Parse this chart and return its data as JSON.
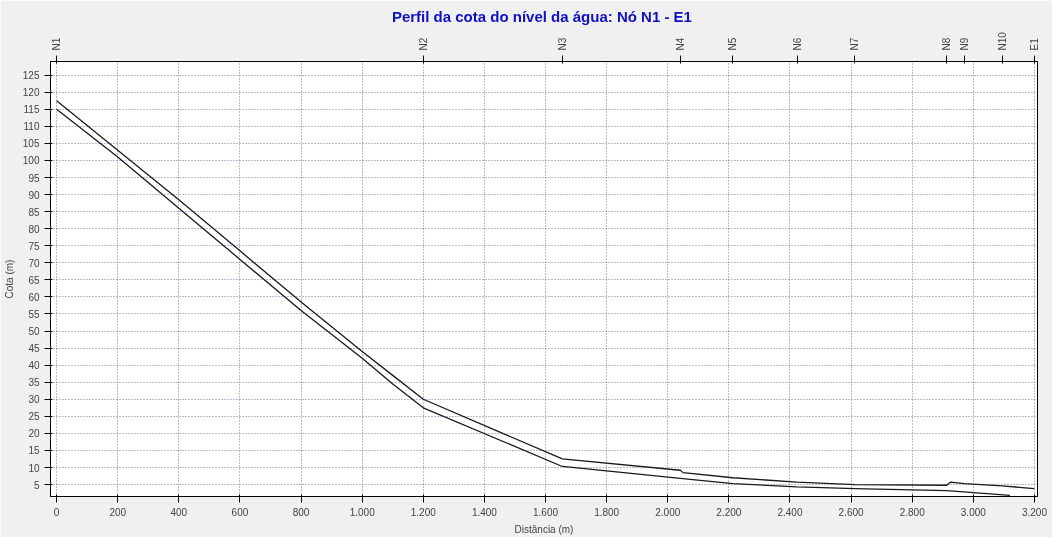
{
  "chart_data": {
    "type": "line",
    "title": "Perfil da cota do nível da água:  Nó N1 - E1",
    "xlabel": "Distância (m)",
    "ylabel": "Cota (m)",
    "series": [
      {
        "color": "#1a1a1a",
        "x": [
          0,
          200,
          400,
          600,
          800,
          1000,
          1100,
          1200,
          1655,
          2041,
          2050,
          2213,
          2423,
          2612,
          2913,
          2925,
          2971,
          3094,
          3200
        ],
        "values": [
          117.5,
          103,
          88.5,
          73.5,
          58.5,
          44,
          37,
          30,
          12.5,
          9.2,
          8.5,
          7,
          5.7,
          5,
          4.8,
          5.7,
          5.3,
          4.6,
          3.8
        ]
      },
      {
        "color": "#1a1a1a",
        "x": [
          0,
          200,
          400,
          600,
          800,
          1000,
          1100,
          1200,
          1655,
          2041,
          2213,
          2423,
          2612,
          2913,
          3120
        ],
        "values": [
          115,
          101,
          86,
          71,
          56,
          42,
          34.5,
          27.5,
          10.3,
          6.8,
          5.3,
          4.3,
          3.8,
          3.2,
          1.8
        ]
      }
    ],
    "xlim": [
      -20,
      3210
    ],
    "ylim": [
      1.5,
      129
    ],
    "xticks": [
      0,
      200,
      400,
      600,
      800,
      {
        "value": 1000,
        "label": "1.000"
      },
      {
        "value": 1200,
        "label": "1.200"
      },
      {
        "value": 1400,
        "label": "1.400"
      },
      {
        "value": 1600,
        "label": "1.600"
      },
      {
        "value": 1800,
        "label": "1.800"
      },
      {
        "value": 2000,
        "label": "2.000"
      },
      {
        "value": 2200,
        "label": "2.200"
      },
      {
        "value": 2400,
        "label": "2.400"
      },
      {
        "value": 2600,
        "label": "2.600"
      },
      {
        "value": 2800,
        "label": "2.800"
      },
      {
        "value": 3000,
        "label": "3.000"
      },
      {
        "value": 3200,
        "label": "3.200"
      }
    ],
    "yticks": [
      5,
      10,
      15,
      20,
      25,
      30,
      35,
      40,
      45,
      50,
      55,
      60,
      65,
      70,
      75,
      80,
      85,
      90,
      95,
      100,
      105,
      110,
      115,
      120,
      125
    ],
    "ref_lines": [
      {
        "axis": "x",
        "value": 0,
        "label": "N1"
      },
      {
        "axis": "x",
        "value": 1200,
        "label": "N2"
      },
      {
        "axis": "x",
        "value": 1655,
        "label": "N3"
      },
      {
        "axis": "x",
        "value": 2041,
        "label": "N4"
      },
      {
        "axis": "x",
        "value": 2213,
        "label": "N5"
      },
      {
        "axis": "x",
        "value": 2423,
        "label": "N6"
      },
      {
        "axis": "x",
        "value": 2612,
        "label": "N7"
      },
      {
        "axis": "x",
        "value": 2913,
        "label": "N8"
      },
      {
        "axis": "x",
        "value": 2971,
        "label": "N9"
      },
      {
        "axis": "x",
        "value": 3094,
        "label": "N10"
      },
      {
        "axis": "x",
        "value": 3200,
        "label": "E1"
      }
    ],
    "grid": true,
    "marker": "none",
    "line_style": "solid"
  }
}
